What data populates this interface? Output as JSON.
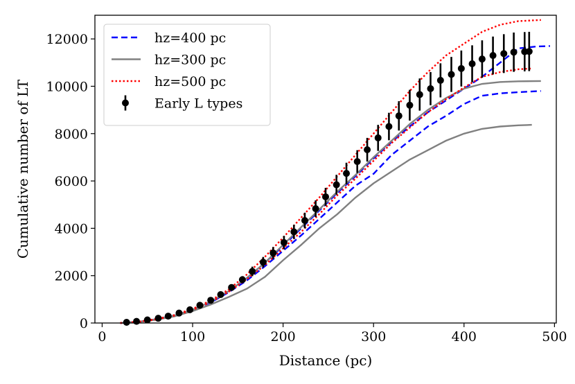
{
  "chart_data": {
    "type": "line",
    "title": "",
    "xlabel": "Distance (pc)",
    "ylabel": "Cumulative number of LT",
    "xlim": [
      -8,
      502
    ],
    "ylim": [
      0,
      13000
    ],
    "x_ticks": [
      0,
      100,
      200,
      300,
      400,
      500
    ],
    "y_ticks": [
      0,
      2000,
      4000,
      6000,
      8000,
      10000,
      12000
    ],
    "x_tick_labels": [
      "0",
      "100",
      "200",
      "300",
      "400",
      "500"
    ],
    "y_tick_labels": [
      "0",
      "2000",
      "4000",
      "6000",
      "8000",
      "10000",
      "12000"
    ],
    "grid": false,
    "legend_position": "top-left",
    "series": [
      {
        "name": "hz=400 pc",
        "color": "#0000ff",
        "style": "dashed",
        "lines": [
          [
            [
              20,
              0
            ],
            [
              40,
              50
            ],
            [
              60,
              160
            ],
            [
              80,
              320
            ],
            [
              100,
              560
            ],
            [
              120,
              900
            ],
            [
              140,
              1350
            ],
            [
              160,
              1900
            ],
            [
              180,
              2550
            ],
            [
              200,
              3250
            ],
            [
              220,
              4000
            ],
            [
              240,
              4750
            ],
            [
              260,
              5500
            ],
            [
              280,
              6200
            ],
            [
              300,
              6950
            ],
            [
              320,
              7650
            ],
            [
              340,
              8300
            ],
            [
              360,
              8900
            ],
            [
              380,
              9400
            ],
            [
              400,
              9900
            ],
            [
              420,
              10400
            ],
            [
              440,
              11000
            ],
            [
              460,
              11600
            ],
            [
              480,
              11680
            ],
            [
              495,
              11700
            ]
          ],
          [
            [
              20,
              0
            ],
            [
              40,
              45
            ],
            [
              60,
              150
            ],
            [
              80,
              300
            ],
            [
              100,
              540
            ],
            [
              120,
              870
            ],
            [
              140,
              1300
            ],
            [
              160,
              1800
            ],
            [
              180,
              2400
            ],
            [
              200,
              3050
            ],
            [
              220,
              3700
            ],
            [
              240,
              4400
            ],
            [
              260,
              5100
            ],
            [
              280,
              5800
            ],
            [
              300,
              6300
            ],
            [
              320,
              7100
            ],
            [
              340,
              7700
            ],
            [
              360,
              8300
            ],
            [
              380,
              8750
            ],
            [
              400,
              9250
            ],
            [
              420,
              9600
            ],
            [
              440,
              9700
            ],
            [
              460,
              9750
            ],
            [
              485,
              9800
            ]
          ]
        ]
      },
      {
        "name": "hz=300 pc",
        "color": "#808080",
        "style": "solid",
        "lines": [
          [
            [
              20,
              0
            ],
            [
              40,
              50
            ],
            [
              60,
              160
            ],
            [
              80,
              320
            ],
            [
              100,
              560
            ],
            [
              120,
              900
            ],
            [
              140,
              1350
            ],
            [
              160,
              1900
            ],
            [
              180,
              2550
            ],
            [
              200,
              3300
            ],
            [
              220,
              4050
            ],
            [
              240,
              4800
            ],
            [
              260,
              5550
            ],
            [
              280,
              6250
            ],
            [
              300,
              7000
            ],
            [
              320,
              7700
            ],
            [
              340,
              8400
            ],
            [
              360,
              9000
            ],
            [
              380,
              9500
            ],
            [
              400,
              9900
            ],
            [
              420,
              10100
            ],
            [
              440,
              10180
            ],
            [
              460,
              10210
            ],
            [
              485,
              10220
            ]
          ],
          [
            [
              20,
              0
            ],
            [
              40,
              40
            ],
            [
              60,
              140
            ],
            [
              80,
              280
            ],
            [
              100,
              500
            ],
            [
              120,
              780
            ],
            [
              140,
              1100
            ],
            [
              160,
              1450
            ],
            [
              180,
              1950
            ],
            [
              200,
              2650
            ],
            [
              220,
              3300
            ],
            [
              240,
              4000
            ],
            [
              260,
              4600
            ],
            [
              280,
              5300
            ],
            [
              300,
              5900
            ],
            [
              320,
              6400
            ],
            [
              340,
              6900
            ],
            [
              360,
              7300
            ],
            [
              380,
              7700
            ],
            [
              400,
              8000
            ],
            [
              420,
              8200
            ],
            [
              440,
              8300
            ],
            [
              460,
              8350
            ],
            [
              475,
              8370
            ]
          ]
        ]
      },
      {
        "name": "hz=500 pc",
        "color": "#ff0000",
        "style": "dotted",
        "lines": [
          [
            [
              20,
              0
            ],
            [
              40,
              55
            ],
            [
              60,
              170
            ],
            [
              80,
              340
            ],
            [
              100,
              600
            ],
            [
              120,
              950
            ],
            [
              140,
              1420
            ],
            [
              160,
              2050
            ],
            [
              180,
              2800
            ],
            [
              200,
              3600
            ],
            [
              220,
              4450
            ],
            [
              240,
              5300
            ],
            [
              260,
              6200
            ],
            [
              280,
              7100
            ],
            [
              300,
              8000
            ],
            [
              320,
              8900
            ],
            [
              340,
              9800
            ],
            [
              360,
              10600
            ],
            [
              380,
              11300
            ],
            [
              400,
              11800
            ],
            [
              420,
              12300
            ],
            [
              440,
              12600
            ],
            [
              460,
              12750
            ],
            [
              485,
              12800
            ]
          ],
          [
            [
              20,
              0
            ],
            [
              40,
              45
            ],
            [
              60,
              150
            ],
            [
              80,
              310
            ],
            [
              100,
              550
            ],
            [
              120,
              880
            ],
            [
              140,
              1320
            ],
            [
              160,
              1850
            ],
            [
              180,
              2450
            ],
            [
              200,
              3150
            ],
            [
              220,
              3850
            ],
            [
              240,
              4600
            ],
            [
              260,
              5400
            ],
            [
              280,
              6100
            ],
            [
              300,
              6850
            ],
            [
              320,
              7600
            ],
            [
              340,
              8250
            ],
            [
              360,
              8900
            ],
            [
              380,
              9450
            ],
            [
              400,
              9950
            ],
            [
              420,
              10400
            ],
            [
              440,
              10600
            ],
            [
              460,
              10720
            ],
            [
              475,
              10750
            ]
          ]
        ]
      },
      {
        "name": "Early L types",
        "color": "#000000",
        "style": "errorbar",
        "points": [
          {
            "x": 27,
            "y": 30,
            "err": 0
          },
          {
            "x": 38,
            "y": 70,
            "err": 0
          },
          {
            "x": 50,
            "y": 130,
            "err": 0
          },
          {
            "x": 62,
            "y": 200,
            "err": 0
          },
          {
            "x": 73,
            "y": 290,
            "err": 0
          },
          {
            "x": 85,
            "y": 420,
            "err": 0
          },
          {
            "x": 97,
            "y": 560,
            "err": 0
          },
          {
            "x": 108,
            "y": 750,
            "err": 0
          },
          {
            "x": 120,
            "y": 960,
            "err": 0
          },
          {
            "x": 131,
            "y": 1200,
            "err": 0
          },
          {
            "x": 143,
            "y": 1500,
            "err": 100
          },
          {
            "x": 155,
            "y": 1830,
            "err": 150
          },
          {
            "x": 166,
            "y": 2180,
            "err": 200
          },
          {
            "x": 178,
            "y": 2570,
            "err": 220
          },
          {
            "x": 189,
            "y": 2960,
            "err": 250
          },
          {
            "x": 201,
            "y": 3400,
            "err": 280
          },
          {
            "x": 212,
            "y": 3850,
            "err": 300
          },
          {
            "x": 224,
            "y": 4330,
            "err": 330
          },
          {
            "x": 236,
            "y": 4830,
            "err": 350
          },
          {
            "x": 247,
            "y": 5330,
            "err": 380
          },
          {
            "x": 259,
            "y": 5840,
            "err": 420
          },
          {
            "x": 270,
            "y": 6320,
            "err": 450
          },
          {
            "x": 282,
            "y": 6820,
            "err": 480
          },
          {
            "x": 293,
            "y": 7320,
            "err": 500
          },
          {
            "x": 305,
            "y": 7820,
            "err": 550
          },
          {
            "x": 317,
            "y": 8300,
            "err": 580
          },
          {
            "x": 328,
            "y": 8750,
            "err": 620
          },
          {
            "x": 340,
            "y": 9200,
            "err": 650
          },
          {
            "x": 351,
            "y": 9650,
            "err": 680
          },
          {
            "x": 363,
            "y": 9900,
            "err": 700
          },
          {
            "x": 374,
            "y": 10250,
            "err": 720
          },
          {
            "x": 386,
            "y": 10500,
            "err": 740
          },
          {
            "x": 397,
            "y": 10750,
            "err": 760
          },
          {
            "x": 409,
            "y": 10950,
            "err": 780
          },
          {
            "x": 420,
            "y": 11150,
            "err": 790
          },
          {
            "x": 432,
            "y": 11300,
            "err": 800
          },
          {
            "x": 444,
            "y": 11380,
            "err": 820
          },
          {
            "x": 455,
            "y": 11440,
            "err": 830
          },
          {
            "x": 467,
            "y": 11460,
            "err": 830
          },
          {
            "x": 472,
            "y": 11470,
            "err": 830
          }
        ]
      }
    ]
  }
}
